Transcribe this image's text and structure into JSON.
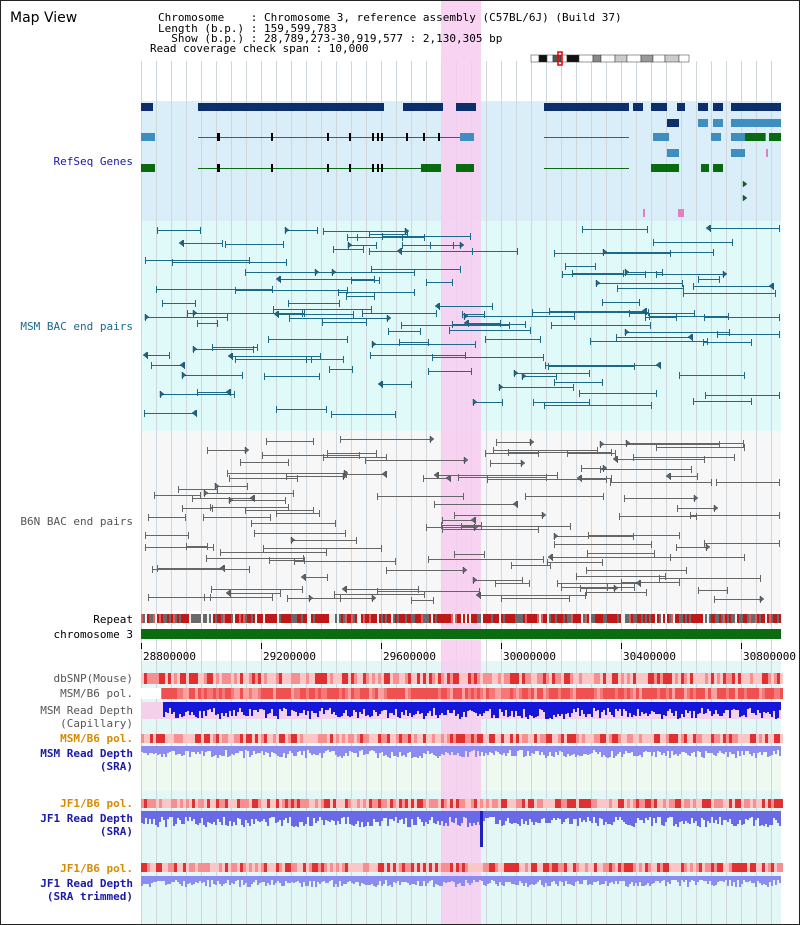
{
  "header": {
    "title": "Map View",
    "info_lines": [
      "Chromosome    : Chromosome 3, reference assembly (C57BL/6J) (Build 37)",
      "Length (b.p.) : 159,599,783",
      "  Show (b.p.) : 28,789,273-30,919,577 : 2,130,305 bp",
      "Read coverage check span : 10,000"
    ]
  },
  "tracks": {
    "refseq": "RefSeq Genes",
    "msm_bac": "MSM BAC end pairs",
    "b6n_bac": "B6N BAC end pairs",
    "repeat": "Repeat",
    "chromosome": "chromosome 3",
    "dbsnp": "dbSNP(Mouse)",
    "msm_b6_pol_1": "MSM/B6 pol.",
    "msm_read_depth_cap": "MSM Read Depth",
    "msm_read_depth_cap_sub": "(Capillary)",
    "msm_b6_pol_2": "MSM/B6 pol.",
    "msm_read_depth_sra": "MSM Read Depth",
    "msm_read_depth_sra_sub": "(SRA)",
    "jf1_b6_pol_1": "JF1/B6 pol.",
    "jf1_read_depth_sra": "JF1 Read Depth",
    "jf1_read_depth_sra_sub": "(SRA)",
    "jf1_b6_pol_2": "JF1/B6 pol.",
    "jf1_read_depth_trim": "JF1 Read Depth",
    "jf1_read_depth_trim_sub": "(SRA trimmed)"
  },
  "axis": {
    "ticks": [
      "28800000",
      "29200000",
      "29600000",
      "30000000",
      "30400000",
      "30800000"
    ]
  },
  "colors": {
    "refseq_bg": "#daeefa",
    "msm_bac_bg": "#e0fafa",
    "b6n_bac_bg": "#f7f7f7",
    "highlight": "#f7cdf0",
    "gene_dark": "#0c2f6b",
    "gene_mid": "#3e8fc0",
    "gene_green": "#0a6a10",
    "bac_msm": "#1b6a8a",
    "bac_b6n": "#666666",
    "chromosome": "#0b6b10",
    "refseq_label": "#1a1aa8",
    "msm_label": "#1b6a8a",
    "b6n_label": "#555555",
    "pol_orange": "#d88a00",
    "depth_blue": "#1a1aa8"
  }
}
